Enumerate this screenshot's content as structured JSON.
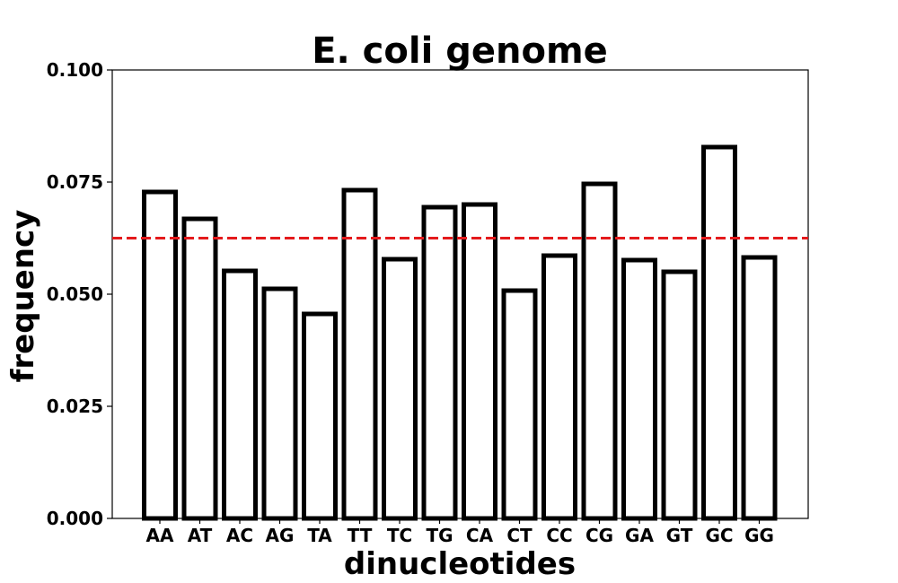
{
  "chart_data": {
    "type": "bar",
    "title": "E. coli genome",
    "xlabel": "dinucleotides",
    "ylabel": "frequency",
    "categories": [
      "AA",
      "AT",
      "AC",
      "AG",
      "TA",
      "TT",
      "TC",
      "TG",
      "CA",
      "CT",
      "CC",
      "CG",
      "GA",
      "GT",
      "GC",
      "GG"
    ],
    "values": [
      0.0728,
      0.0668,
      0.0552,
      0.0512,
      0.0456,
      0.0732,
      0.0578,
      0.0694,
      0.07,
      0.0508,
      0.0586,
      0.0746,
      0.0576,
      0.055,
      0.0828,
      0.0582
    ],
    "ylim": [
      0,
      0.1
    ],
    "yticks": [
      "0.000",
      "0.025",
      "0.050",
      "0.075",
      "0.100"
    ],
    "ytick_values": [
      0,
      0.025,
      0.05,
      0.075,
      0.1
    ],
    "reference_line": {
      "value": 0.0625,
      "style": "dashed",
      "color": "#e41a1c"
    },
    "bar_fill": "#ffffff",
    "bar_edge": "#000000",
    "grid": false
  }
}
